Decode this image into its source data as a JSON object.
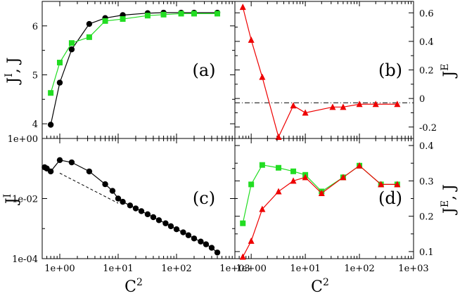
{
  "chart_data": [
    {
      "panel": "a",
      "type": "line",
      "label": "(a)",
      "ylabel": "J^I, J",
      "xscale": "log",
      "xlim": [
        0.5,
        1000
      ],
      "ylim": [
        3.7,
        6.5
      ],
      "yticks": [
        4,
        5,
        6
      ],
      "ytick_labels": [
        "4",
        "5",
        "6"
      ],
      "series": [
        {
          "name": "J^I",
          "color": "#000000",
          "marker": "circle",
          "x": [
            0.7,
            1.0,
            1.6,
            3.2,
            6.0,
            12,
            32,
            60,
            120,
            200,
            500
          ],
          "y": [
            3.98,
            4.84,
            5.52,
            6.04,
            6.16,
            6.22,
            6.26,
            6.27,
            6.27,
            6.27,
            6.27
          ]
        },
        {
          "name": "J",
          "color": "#22dd22",
          "marker": "square",
          "x": [
            0.7,
            1.0,
            1.6,
            3.2,
            6.0,
            12,
            32,
            60,
            120,
            200,
            500
          ],
          "y": [
            4.63,
            5.25,
            5.65,
            5.77,
            6.1,
            6.14,
            6.21,
            6.23,
            6.25,
            6.25,
            6.25
          ]
        }
      ]
    },
    {
      "panel": "b",
      "type": "line",
      "label": "(b)",
      "ylabel": "J^E",
      "yaxis_side": "right",
      "xscale": "log",
      "xlim": [
        0.5,
        1000
      ],
      "ylim": [
        -0.28,
        0.68
      ],
      "yticks": [
        -0.2,
        0,
        0.2,
        0.4,
        0.6
      ],
      "ytick_labels": [
        "-0.2",
        "0",
        "0.2",
        "0.4",
        "0.6"
      ],
      "reference_line": {
        "y": -0.03,
        "style": "dash-dot"
      },
      "series": [
        {
          "name": "J^E",
          "color": "#ee0000",
          "marker": "triangle",
          "x": [
            0.7,
            1.0,
            1.6,
            3.2,
            6.0,
            10,
            32,
            50,
            100,
            200,
            500
          ],
          "y": [
            0.64,
            0.41,
            0.15,
            -0.27,
            -0.05,
            -0.1,
            -0.06,
            -0.06,
            -0.04,
            -0.04,
            -0.04
          ]
        }
      ]
    },
    {
      "panel": "c",
      "type": "line",
      "label": "(c)",
      "ylabel": "J^I",
      "xlabel": "C^2",
      "xscale": "log",
      "yscale": "log",
      "xlim": [
        0.5,
        1000
      ],
      "ylim": [
        0.0001,
        1
      ],
      "xtick_values": [
        1,
        10,
        100,
        1000
      ],
      "xtick_labels": [
        "1e+00",
        "1e+01",
        "1e+02",
        "1e+03"
      ],
      "ytick_values": [
        1,
        0.01,
        0.0001
      ],
      "ytick_labels": [
        "1e+00",
        "1e-02",
        "1e-04"
      ],
      "reference_line": {
        "x": [
          1.0,
          10
        ],
        "y": [
          0.07,
          0.007
        ],
        "style": "dashed"
      },
      "series": [
        {
          "name": "J^I",
          "color": "#000000",
          "marker": "circle",
          "x": [
            0.55,
            0.6,
            0.7,
            1.0,
            1.6,
            3.2,
            6.0,
            8,
            10,
            12,
            16,
            20,
            25,
            32,
            40,
            50,
            65,
            80,
            100,
            130,
            160,
            200,
            260,
            320,
            400,
            500
          ],
          "y": [
            0.11,
            0.1,
            0.08,
            0.19,
            0.16,
            0.08,
            0.03,
            0.018,
            0.01,
            0.0078,
            0.0059,
            0.0047,
            0.0038,
            0.003,
            0.0024,
            0.0019,
            0.0015,
            0.0012,
            0.00095,
            0.00075,
            0.0006,
            0.00047,
            0.00037,
            0.0003,
            0.00023,
            0.00016
          ]
        }
      ]
    },
    {
      "panel": "d",
      "type": "line",
      "label": "(d)",
      "ylabel": "J^E, J",
      "xlabel": "C^2",
      "yaxis_side": "right",
      "xscale": "log",
      "xlim": [
        0.5,
        1000
      ],
      "ylim": [
        0.08,
        0.42
      ],
      "xtick_values": [
        1,
        10,
        100,
        1000
      ],
      "xtick_labels": [
        "1e+00",
        "1e+01",
        "1e+02",
        "1e+03"
      ],
      "yticks": [
        0.1,
        0.2,
        0.3,
        0.4
      ],
      "ytick_labels": [
        "0.1",
        "0.2",
        "0.3",
        "0.4"
      ],
      "series": [
        {
          "name": "J",
          "color": "#22dd22",
          "marker": "square",
          "x": [
            0.7,
            1.0,
            1.6,
            3.2,
            6.0,
            10,
            20,
            50,
            100,
            250,
            500
          ],
          "y": [
            0.18,
            0.29,
            0.345,
            0.337,
            0.327,
            0.317,
            0.27,
            0.31,
            0.343,
            0.29,
            0.29
          ]
        },
        {
          "name": "J^E",
          "color": "#ee0000",
          "marker": "triangle",
          "x": [
            0.7,
            1.0,
            1.6,
            3.2,
            6.0,
            10,
            20,
            50,
            100,
            250,
            500
          ],
          "y": [
            0.085,
            0.13,
            0.22,
            0.27,
            0.3,
            0.31,
            0.265,
            0.31,
            0.343,
            0.29,
            0.29
          ]
        }
      ]
    }
  ],
  "ylabels": {
    "a": "J",
    "a_sup": "I",
    "a_rest": ", J",
    "b": "J",
    "b_sup": "E",
    "c": "J",
    "c_sup": "I",
    "d": "J",
    "d_sup": "E",
    "d_rest": ", J"
  },
  "xlabels": {
    "c": "C",
    "d": "C",
    "sup": "2"
  }
}
